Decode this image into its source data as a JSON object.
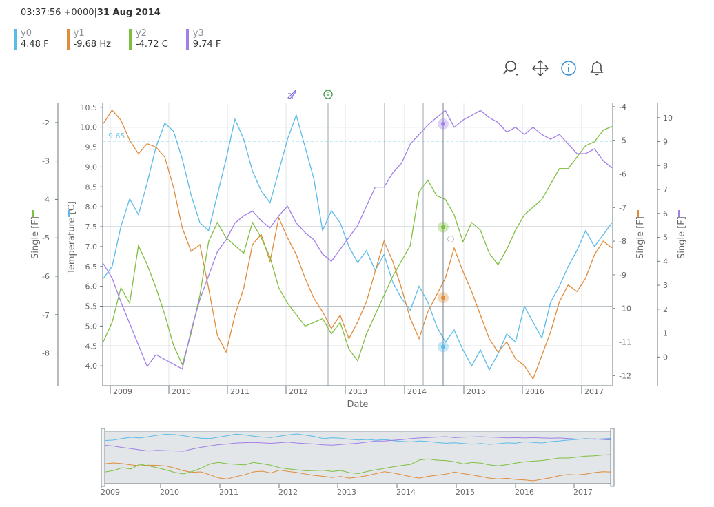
{
  "header": {
    "time": "03:37:56 +0000",
    "separator": "|",
    "date": "31 Aug 2014"
  },
  "legend": [
    {
      "name": "y0",
      "value": "4.48 F",
      "color": "#5bbbe8"
    },
    {
      "name": "y1",
      "value": "-9.68 Hz",
      "color": "#e08b3a"
    },
    {
      "name": "y2",
      "value": "-4.72 C",
      "color": "#7fbf3f"
    },
    {
      "name": "y3",
      "value": "9.74 F",
      "color": "#a27ee8"
    }
  ],
  "toolbar": [
    {
      "name": "zoom-icon"
    },
    {
      "name": "pan-icon"
    },
    {
      "name": "info-icon"
    },
    {
      "name": "bell-icon"
    }
  ],
  "colors": {
    "axis": "#6b7a82",
    "grid": "#dfe3e6",
    "crosshair": "#8a9aa5"
  },
  "chart_data": {
    "type": "line",
    "xlabel": "Date",
    "x_ticks": [
      "2009",
      "2010",
      "2011",
      "2012",
      "2013",
      "2014",
      "2015",
      "2016",
      "2017"
    ],
    "cursor_date": "31 Aug 2014",
    "cursor_label": "9.65",
    "axes": [
      {
        "id": "left_outer",
        "title": "Single [F]",
        "color": "#7fbf3f",
        "ylim": [
          -8.85,
          -1.5
        ],
        "ticks": [
          -2,
          -3,
          -4,
          -5,
          -6,
          -7,
          -8
        ]
      },
      {
        "id": "left_inner",
        "title": "Temperature [C]",
        "color": "#5bbbe8",
        "ylim": [
          3.5,
          10.6
        ],
        "ticks": [
          "4.0",
          "4.5",
          "5.0",
          "5.5",
          "6.0",
          "6.5",
          "7.0",
          "7.5",
          "8.0",
          "8.5",
          "9.0",
          "9.5",
          "10.0",
          "10.5"
        ]
      },
      {
        "id": "right_inner",
        "title": "Single [F]",
        "color": "#e08b3a",
        "ylim": [
          -12.3,
          -3.9
        ],
        "ticks": [
          -4,
          -5,
          -6,
          -7,
          -8,
          -9,
          -10,
          -11,
          -12
        ]
      },
      {
        "id": "right_outer",
        "title": "Single [F]",
        "color": "#a27ee8",
        "ylim": [
          -1.2,
          10.6
        ],
        "ticks": [
          10,
          9,
          8,
          7,
          6,
          5,
          4,
          3,
          2,
          1,
          0
        ]
      }
    ],
    "series": [
      {
        "name": "y0",
        "axis": "left_inner",
        "color": "#5bbbe8",
        "values": [
          6.2,
          6.5,
          7.5,
          8.2,
          7.8,
          8.6,
          9.5,
          10.1,
          9.9,
          9.2,
          8.3,
          7.6,
          7.4,
          8.3,
          9.2,
          10.2,
          9.7,
          8.9,
          8.4,
          8.1,
          8.9,
          9.7,
          10.3,
          9.5,
          8.7,
          7.4,
          7.9,
          7.6,
          7.0,
          6.6,
          6.9,
          6.4,
          6.8,
          6.1,
          5.7,
          5.4,
          6.0,
          5.6,
          5.0,
          4.6,
          4.9,
          4.4,
          4.0,
          4.4,
          3.9,
          4.3,
          4.8,
          4.6,
          5.5,
          5.1,
          4.7,
          5.6,
          6.0,
          6.5,
          6.9,
          7.4,
          7.0,
          7.3,
          7.6
        ]
      },
      {
        "name": "y1",
        "axis": "right_inner",
        "color": "#e08b3a",
        "values": [
          -4.5,
          -4.1,
          -4.4,
          -5.0,
          -5.4,
          -5.1,
          -5.2,
          -5.5,
          -6.4,
          -7.6,
          -8.3,
          -8.1,
          -9.4,
          -10.8,
          -11.3,
          -10.2,
          -9.4,
          -8.1,
          -7.8,
          -8.6,
          -7.3,
          -7.9,
          -8.4,
          -9.1,
          -9.7,
          -10.1,
          -10.6,
          -10.2,
          -10.9,
          -10.4,
          -9.8,
          -8.9,
          -8.0,
          -8.6,
          -9.4,
          -10.3,
          -10.9,
          -10.1,
          -9.6,
          -9.1,
          -8.2,
          -8.9,
          -9.5,
          -10.2,
          -10.9,
          -11.3,
          -11.0,
          -11.5,
          -11.7,
          -12.1,
          -11.4,
          -10.7,
          -9.8,
          -9.3,
          -9.5,
          -9.1,
          -8.4,
          -8.0,
          -8.2
        ]
      },
      {
        "name": "y2",
        "axis": "left_outer",
        "color": "#7fbf3f",
        "values": [
          -7.7,
          -7.2,
          -6.3,
          -6.7,
          -5.2,
          -5.7,
          -6.3,
          -7.0,
          -7.8,
          -8.3,
          -7.5,
          -6.5,
          -5.1,
          -4.6,
          -5.0,
          -5.2,
          -5.4,
          -4.6,
          -5.0,
          -5.5,
          -6.3,
          -6.7,
          -7.0,
          -7.3,
          -7.2,
          -7.1,
          -7.5,
          -7.2,
          -7.9,
          -8.2,
          -7.5,
          -7.0,
          -6.5,
          -6.0,
          -5.6,
          -5.2,
          -3.8,
          -3.5,
          -3.9,
          -4.0,
          -4.4,
          -5.1,
          -4.6,
          -4.8,
          -5.4,
          -5.7,
          -5.3,
          -4.8,
          -4.4,
          -4.2,
          -4.0,
          -3.6,
          -3.2,
          -3.2,
          -2.9,
          -2.6,
          -2.5,
          -2.2,
          -2.1
        ]
      },
      {
        "name": "y3",
        "axis": "right_outer",
        "color": "#a27ee8",
        "values": [
          3.9,
          3.3,
          2.3,
          1.4,
          0.5,
          -0.4,
          0.1,
          -0.1,
          -0.3,
          -0.5,
          1.1,
          2.4,
          3.4,
          4.4,
          4.9,
          5.6,
          5.9,
          6.1,
          5.7,
          5.4,
          5.9,
          6.3,
          5.6,
          5.2,
          4.9,
          4.3,
          4.0,
          4.5,
          5.0,
          5.5,
          6.3,
          7.1,
          7.1,
          7.7,
          8.1,
          8.9,
          9.3,
          9.7,
          10.0,
          10.3,
          9.6,
          9.9,
          10.1,
          10.3,
          10.0,
          9.8,
          9.4,
          9.6,
          9.3,
          9.6,
          9.3,
          9.1,
          9.3,
          8.9,
          8.5,
          8.5,
          8.7,
          8.2,
          7.9
        ]
      }
    ],
    "cursor_values": [
      {
        "series": "y0",
        "value": 4.48
      },
      {
        "series": "y1",
        "value": -9.68
      },
      {
        "series": "y2",
        "value": -4.72
      },
      {
        "series": "y3",
        "value": 9.74
      }
    ],
    "threshold": {
      "axis": "left_inner",
      "value": 9.65
    }
  }
}
